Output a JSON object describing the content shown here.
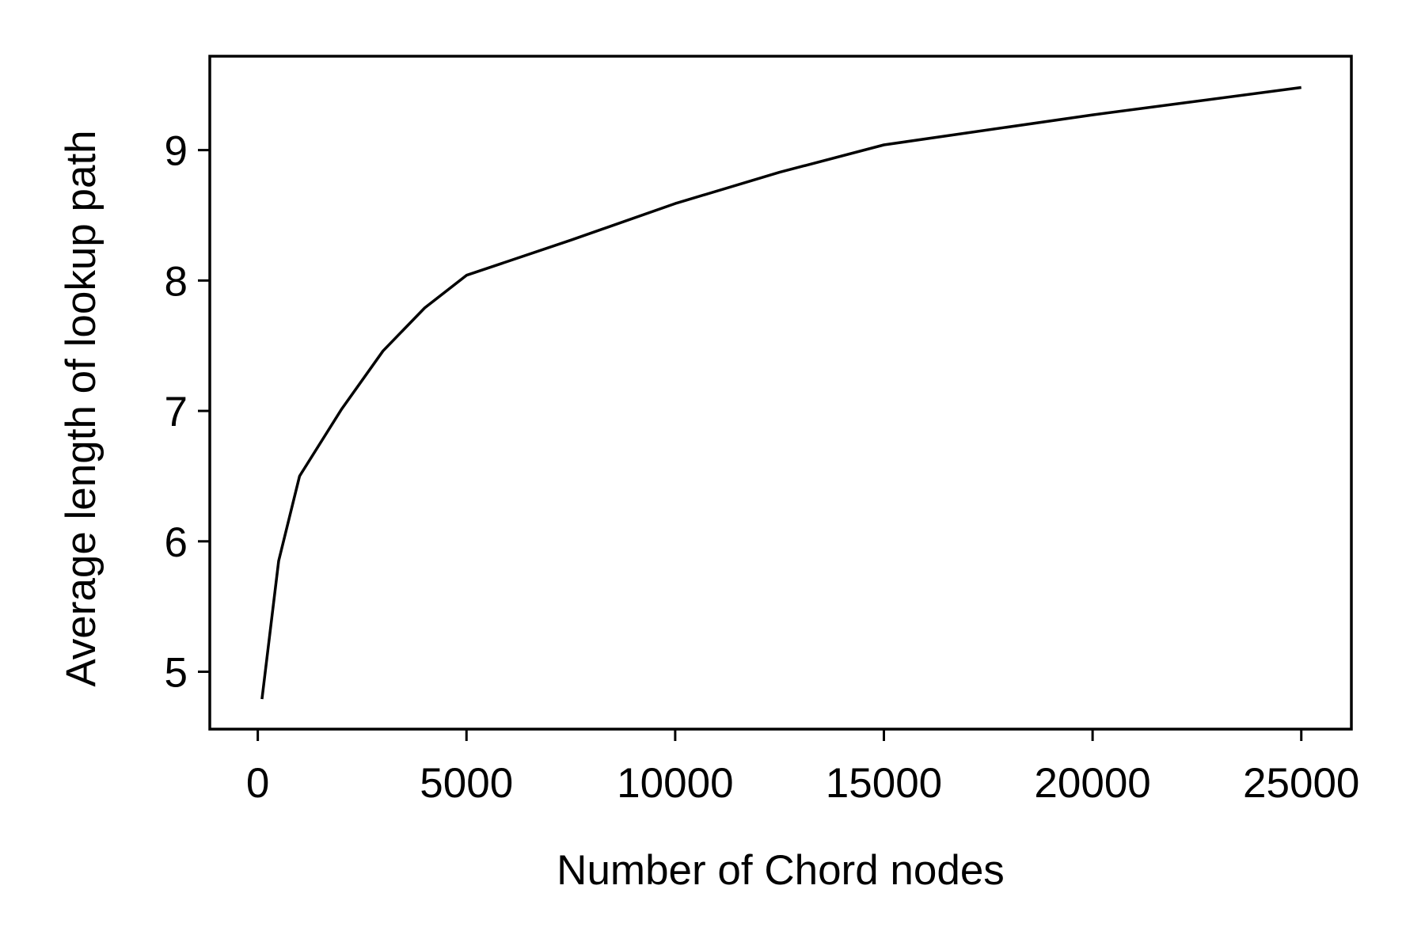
{
  "chart_data": {
    "type": "line",
    "title": "",
    "xlabel": "Number of Chord nodes",
    "ylabel": "Average length of lookup path",
    "xlim": [
      -1150,
      26200
    ],
    "ylim": [
      4.56,
      9.72
    ],
    "xticks": [
      0,
      5000,
      10000,
      15000,
      20000,
      25000
    ],
    "xtick_labels": [
      "0",
      "5000",
      "10000",
      "15000",
      "20000",
      "25000"
    ],
    "yticks": [
      5,
      6,
      7,
      8,
      9
    ],
    "ytick_labels": [
      "5",
      "6",
      "7",
      "8",
      "9"
    ],
    "grid": false,
    "legend": "none",
    "line_color": "#000000",
    "series": [
      {
        "x": [
          100,
          500,
          1000,
          2000,
          3000,
          4000,
          5000,
          7500,
          10000,
          12500,
          15000,
          20000,
          25000
        ],
        "y": [
          4.79,
          5.85,
          6.5,
          7.01,
          7.46,
          7.79,
          8.04,
          8.31,
          8.59,
          8.83,
          9.04,
          9.27,
          9.48
        ]
      }
    ]
  }
}
